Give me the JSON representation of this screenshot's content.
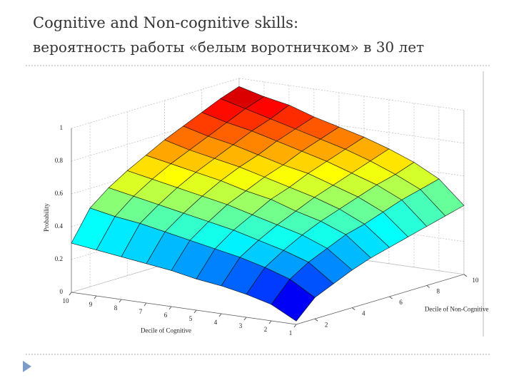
{
  "header": {
    "title": "Cognitive and Non-cognitive skills:",
    "subtitle": "вероятность работы «белым воротничком» в 30 лет"
  },
  "chart_data": {
    "type": "surface",
    "xlabel": "Decile of Cognitive",
    "ylabel": "Decile of Non-Cognitive",
    "zlabel": "Probability",
    "x": [
      1,
      2,
      3,
      4,
      5,
      6,
      7,
      8,
      9,
      10
    ],
    "y": [
      1,
      2,
      3,
      4,
      5,
      6,
      7,
      8,
      9,
      10
    ],
    "z": [
      [
        0.02,
        0.13,
        0.18,
        0.23,
        0.27,
        0.3,
        0.33,
        0.36,
        0.39,
        0.42
      ],
      [
        0.1,
        0.22,
        0.29,
        0.34,
        0.39,
        0.42,
        0.46,
        0.5,
        0.53,
        0.56
      ],
      [
        0.14,
        0.27,
        0.34,
        0.4,
        0.45,
        0.49,
        0.53,
        0.57,
        0.6,
        0.64
      ],
      [
        0.17,
        0.31,
        0.38,
        0.44,
        0.49,
        0.54,
        0.58,
        0.62,
        0.66,
        0.7
      ],
      [
        0.19,
        0.34,
        0.42,
        0.48,
        0.54,
        0.58,
        0.63,
        0.67,
        0.71,
        0.75
      ],
      [
        0.22,
        0.37,
        0.45,
        0.52,
        0.57,
        0.62,
        0.66,
        0.71,
        0.75,
        0.79
      ],
      [
        0.24,
        0.4,
        0.48,
        0.55,
        0.61,
        0.66,
        0.7,
        0.75,
        0.79,
        0.83
      ],
      [
        0.26,
        0.43,
        0.51,
        0.58,
        0.64,
        0.69,
        0.74,
        0.79,
        0.83,
        0.88
      ],
      [
        0.28,
        0.45,
        0.54,
        0.61,
        0.67,
        0.72,
        0.77,
        0.82,
        0.87,
        0.91
      ],
      [
        0.3,
        0.48,
        0.57,
        0.64,
        0.7,
        0.76,
        0.81,
        0.86,
        0.91,
        0.95
      ]
    ],
    "xlim": [
      1,
      10
    ],
    "ylim": [
      1,
      10
    ],
    "zlim": [
      0,
      1
    ],
    "xticks": [
      1,
      2,
      3,
      4,
      5,
      6,
      7,
      8,
      9,
      10
    ],
    "yticks": [
      2,
      4,
      6,
      8,
      10
    ],
    "zticks": [
      0,
      0.2,
      0.4,
      0.6,
      0.8,
      1
    ],
    "colormap": "jet",
    "grid": true
  }
}
